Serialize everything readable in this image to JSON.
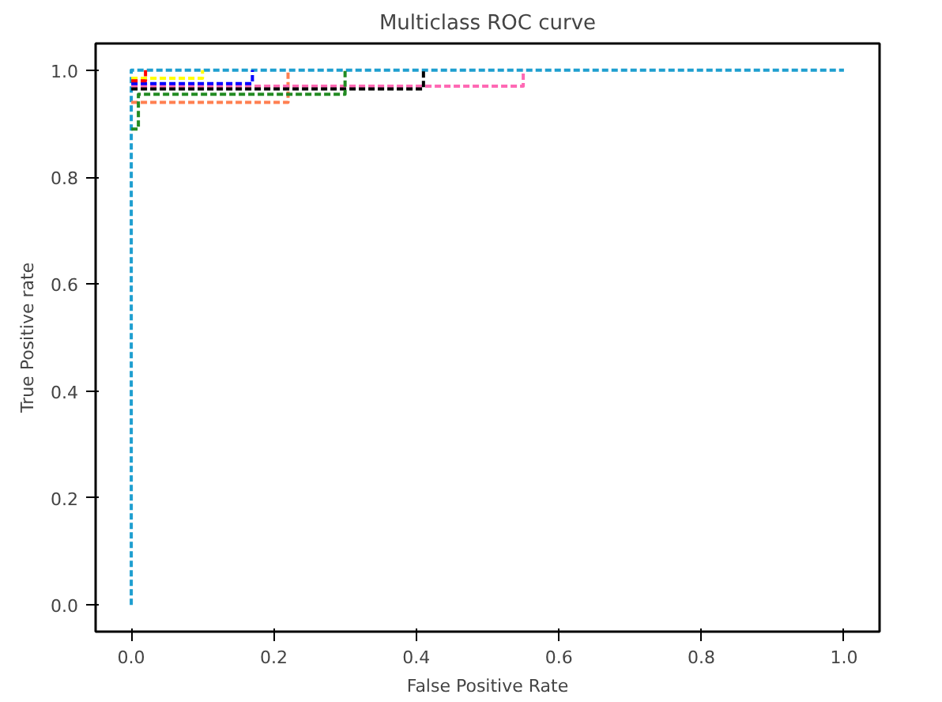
{
  "chart_data": {
    "type": "line",
    "title": "Multiclass ROC curve",
    "xlabel": "False Positive Rate",
    "ylabel": "True Positive rate",
    "xlim": [
      -0.05,
      1.05
    ],
    "ylim": [
      -0.05,
      1.05
    ],
    "xticks": [
      {
        "value": 0,
        "label": "0.0"
      },
      0.2,
      0.4,
      0.6,
      0.8,
      {
        "value": 1,
        "label": "1.0"
      }
    ],
    "yticks": [
      {
        "value": 0,
        "label": "0.0"
      },
      0.2,
      0.4,
      0.6,
      0.8,
      {
        "value": 1,
        "label": "1.0"
      }
    ],
    "grid": false,
    "line_style": "dashed",
    "marker": "none",
    "series": [
      {
        "color": "#1f9fd0",
        "x": [
          0,
          0,
          1
        ],
        "values": [
          0,
          1,
          1
        ]
      },
      {
        "color": "#ff7f50",
        "x": [
          0,
          0.22,
          0.22
        ],
        "values": [
          0.94,
          0.94,
          1
        ]
      },
      {
        "color": "#ff69b4",
        "x": [
          0,
          0.55,
          0.55
        ],
        "values": [
          0.97,
          0.97,
          1
        ]
      },
      {
        "color": "#000000",
        "x": [
          0,
          0.41,
          0.41
        ],
        "values": [
          0.965,
          0.965,
          1
        ]
      },
      {
        "color": "#228b22",
        "x": [
          0,
          0.01,
          0.01,
          0.3,
          0.3
        ],
        "values": [
          0.89,
          0.89,
          0.955,
          0.955,
          1
        ]
      },
      {
        "color": "#0000ff",
        "x": [
          0,
          0.17,
          0.17
        ],
        "values": [
          0.975,
          0.975,
          1
        ]
      },
      {
        "color": "#ffff00",
        "x": [
          0,
          0.1,
          0.1
        ],
        "values": [
          0.985,
          0.985,
          1
        ]
      },
      {
        "color": "#ff0000",
        "x": [
          0,
          0.02,
          0.02
        ],
        "values": [
          0.98,
          0.98,
          1
        ]
      }
    ]
  }
}
